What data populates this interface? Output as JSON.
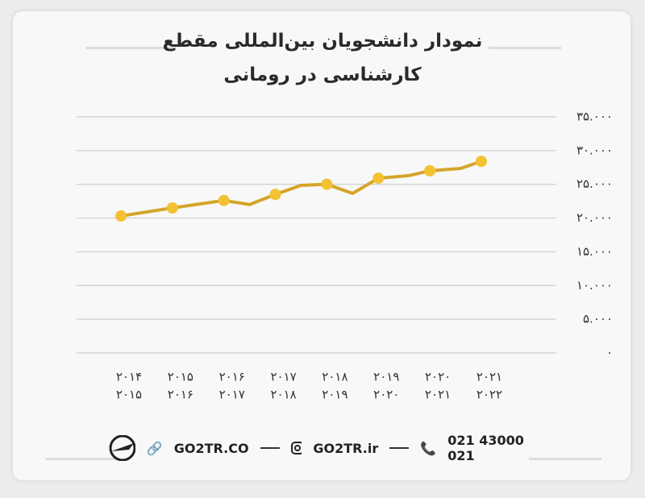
{
  "chart_data": {
    "type": "line",
    "title": "نمودار دانشجویان بین‌المللی مقطع کارشناسی در رومانی",
    "categories": [
      [
        "۲۰۱۴",
        "۲۰۱۵"
      ],
      [
        "۲۰۱۵",
        "۲۰۱۶"
      ],
      [
        "۲۰۱۶",
        "۲۰۱۷"
      ],
      [
        "۲۰۱۷",
        "۲۰۱۸"
      ],
      [
        "۲۰۱۸",
        "۲۰۱۹"
      ],
      [
        "۲۰۱۹",
        "۲۰۲۰"
      ],
      [
        "۲۰۲۰",
        "۲۰۲۱"
      ],
      [
        "۲۰۲۱",
        "۲۰۲۲"
      ]
    ],
    "x": [
      0,
      1,
      2,
      2.5,
      3,
      3.5,
      4,
      4.5,
      5,
      5.6,
      6,
      6.6,
      7
    ],
    "values": [
      20300,
      21500,
      22600,
      22000,
      23500,
      24850,
      25000,
      23650,
      25900,
      26300,
      27000,
      27350,
      28400
    ],
    "color": "#d4a52a",
    "marker_color": "#f3c232",
    "xlim": [
      0,
      7
    ],
    "ylim": [
      0,
      35000
    ],
    "yticks": [
      {
        "value": 0,
        "label": "۰"
      },
      {
        "value": 5000,
        "label": "۵.۰۰۰"
      },
      {
        "value": 10000,
        "label": "۱۰.۰۰۰"
      },
      {
        "value": 15000,
        "label": "۱۵.۰۰۰"
      },
      {
        "value": 20000,
        "label": "۲۰.۰۰۰"
      },
      {
        "value": 25000,
        "label": "۲۵.۰۰۰"
      },
      {
        "value": 30000,
        "label": "۳۰.۰۰۰"
      },
      {
        "value": 35000,
        "label": "۳۵.۰۰۰"
      }
    ],
    "grid": true
  },
  "footer": {
    "website": "GO2TR.CO",
    "instagram": "GO2TR.ir",
    "phone": "021 43000 021"
  }
}
